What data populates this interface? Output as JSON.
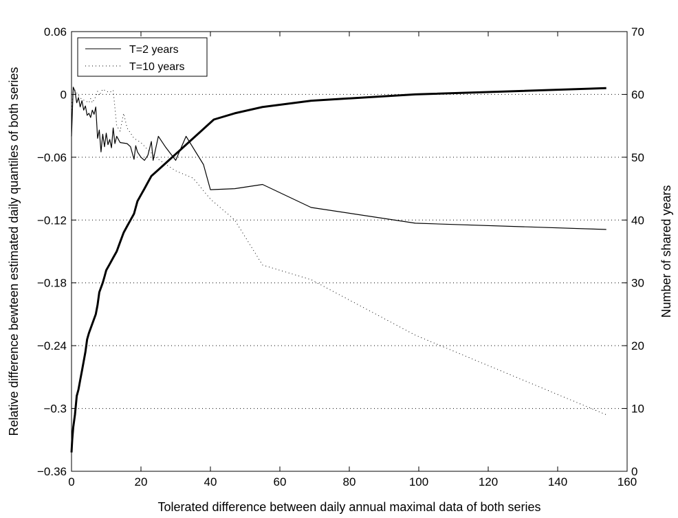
{
  "chart_data": {
    "type": "line",
    "xlabel": "Tolerated difference between daily annual maximal data of both series",
    "ylabel": "Relative difference bewteen estimated daily quantiles of  both series",
    "y2label": "Number of shared years",
    "xlim": [
      0,
      160
    ],
    "ylim": [
      -0.36,
      0.06
    ],
    "y2lim": [
      0,
      70
    ],
    "xticks": [
      "0",
      "20",
      "40",
      "60",
      "80",
      "100",
      "120",
      "140",
      "160"
    ],
    "yticks": [
      "0.06",
      "0",
      "−0.06",
      "−0.12",
      "−0.18",
      "−0.24",
      "−0.3",
      "−0.36"
    ],
    "y2ticks": [
      "70",
      "60",
      "50",
      "40",
      "30",
      "20",
      "10",
      "0"
    ],
    "grid": "horizontal dotted",
    "legend": {
      "position": "top-left",
      "entries": [
        "T=2 years",
        "T=10 years"
      ]
    },
    "series": [
      {
        "name": "T=2 years",
        "axis": "left",
        "style": "thin-solid",
        "points": [
          [
            0,
            -0.04
          ],
          [
            0.5,
            0.007
          ],
          [
            1,
            0.003
          ],
          [
            1.5,
            -0.008
          ],
          [
            2,
            -0.003
          ],
          [
            2.5,
            -0.012
          ],
          [
            3,
            -0.006
          ],
          [
            3.5,
            -0.015
          ],
          [
            4,
            -0.011
          ],
          [
            4.5,
            -0.02
          ],
          [
            5,
            -0.018
          ],
          [
            5.5,
            -0.022
          ],
          [
            6,
            -0.015
          ],
          [
            6.5,
            -0.019
          ],
          [
            7,
            -0.012
          ],
          [
            7.5,
            -0.042
          ],
          [
            8,
            -0.034
          ],
          [
            8.5,
            -0.055
          ],
          [
            9,
            -0.038
          ],
          [
            9.5,
            -0.05
          ],
          [
            10,
            -0.037
          ],
          [
            10.5,
            -0.048
          ],
          [
            11,
            -0.043
          ],
          [
            11.5,
            -0.051
          ],
          [
            12,
            -0.032
          ],
          [
            12.5,
            -0.047
          ],
          [
            13,
            -0.04
          ],
          [
            14,
            -0.046
          ],
          [
            16,
            -0.047
          ],
          [
            17,
            -0.05
          ],
          [
            18,
            -0.062
          ],
          [
            18.5,
            -0.049
          ],
          [
            19,
            -0.055
          ],
          [
            20,
            -0.06
          ],
          [
            21,
            -0.063
          ],
          [
            22,
            -0.058
          ],
          [
            23,
            -0.045
          ],
          [
            23.5,
            -0.063
          ],
          [
            25,
            -0.04
          ],
          [
            27,
            -0.05
          ],
          [
            30,
            -0.063
          ],
          [
            33,
            -0.04
          ],
          [
            38,
            -0.067
          ],
          [
            40,
            -0.091
          ],
          [
            47,
            -0.09
          ],
          [
            55,
            -0.086
          ],
          [
            69,
            -0.108
          ],
          [
            99,
            -0.123
          ],
          [
            154,
            -0.129
          ]
        ]
      },
      {
        "name": "T=10 years",
        "axis": "left",
        "style": "dotted",
        "points": [
          [
            0,
            -0.018
          ],
          [
            0.5,
            0.006
          ],
          [
            1,
            0.004
          ],
          [
            2,
            -0.001
          ],
          [
            3,
            -0.005
          ],
          [
            4,
            -0.006
          ],
          [
            5,
            -0.008
          ],
          [
            5.5,
            -0.004
          ],
          [
            6,
            -0.008
          ],
          [
            7,
            -0.002
          ],
          [
            7.5,
            0.003
          ],
          [
            8,
            -0.001
          ],
          [
            9,
            0.005
          ],
          [
            10,
            0.003
          ],
          [
            11,
            0.002
          ],
          [
            12,
            0.004
          ],
          [
            13,
            -0.03
          ],
          [
            14,
            -0.035
          ],
          [
            15,
            -0.018
          ],
          [
            16,
            -0.032
          ],
          [
            18,
            -0.042
          ],
          [
            20,
            -0.046
          ],
          [
            22,
            -0.053
          ],
          [
            25,
            -0.062
          ],
          [
            30,
            -0.073
          ],
          [
            35,
            -0.08
          ],
          [
            40,
            -0.1
          ],
          [
            47,
            -0.12
          ],
          [
            55,
            -0.163
          ],
          [
            69,
            -0.177
          ],
          [
            99,
            -0.23
          ],
          [
            154,
            -0.306
          ]
        ]
      },
      {
        "name": "",
        "axis": "right",
        "style": "thick-solid",
        "points": [
          [
            0,
            3
          ],
          [
            0.2,
            5
          ],
          [
            0.5,
            7
          ],
          [
            1,
            9
          ],
          [
            1.5,
            12
          ],
          [
            2,
            13
          ],
          [
            2.5,
            14.5
          ],
          [
            3,
            16
          ],
          [
            3.5,
            17.5
          ],
          [
            4,
            19
          ],
          [
            4.5,
            21
          ],
          [
            5,
            22
          ],
          [
            6,
            23.5
          ],
          [
            7,
            25
          ],
          [
            7.5,
            26.5
          ],
          [
            8,
            28.5
          ],
          [
            9,
            30
          ],
          [
            9.5,
            31
          ],
          [
            10,
            32
          ],
          [
            11,
            33
          ],
          [
            12,
            34
          ],
          [
            13,
            35
          ],
          [
            14,
            36.5
          ],
          [
            15,
            38
          ],
          [
            16,
            39
          ],
          [
            17,
            40
          ],
          [
            18,
            41
          ],
          [
            18.5,
            42
          ],
          [
            19,
            43
          ],
          [
            20,
            44
          ],
          [
            21,
            45
          ],
          [
            22,
            46
          ],
          [
            23,
            47
          ],
          [
            25,
            48
          ],
          [
            27,
            49
          ],
          [
            29,
            50
          ],
          [
            31,
            51
          ],
          [
            33,
            52
          ],
          [
            35,
            53
          ],
          [
            37,
            54
          ],
          [
            39,
            55
          ],
          [
            41,
            56
          ],
          [
            47,
            57
          ],
          [
            55,
            58
          ],
          [
            69,
            59
          ],
          [
            99,
            60
          ],
          [
            154,
            61
          ]
        ]
      }
    ]
  }
}
